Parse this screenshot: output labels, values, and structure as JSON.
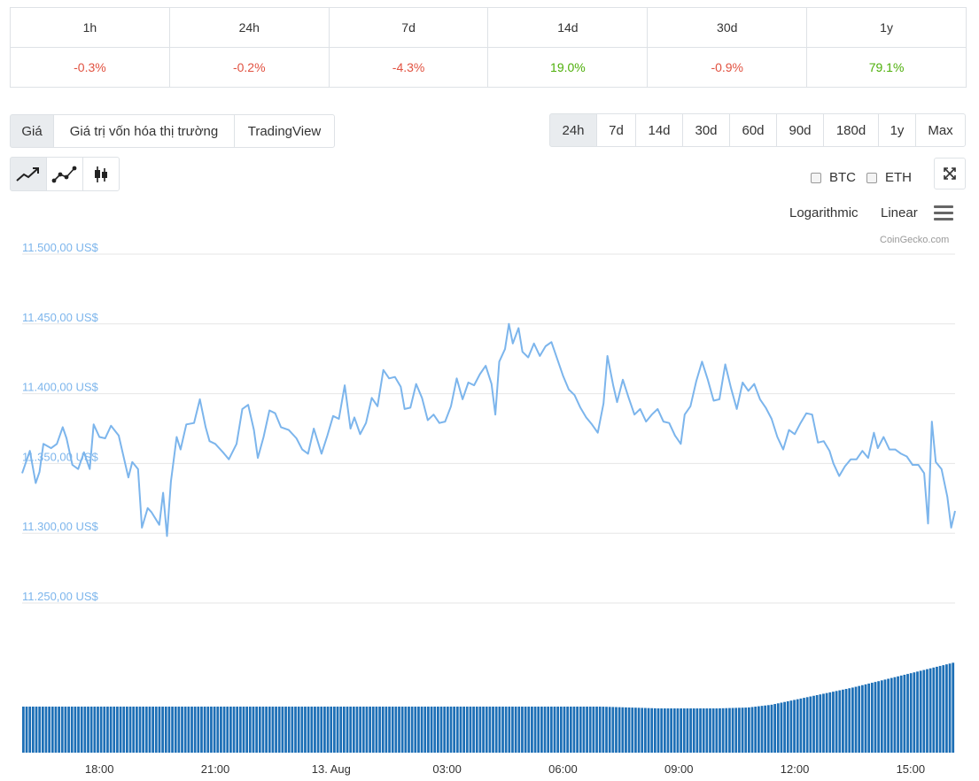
{
  "change_table": {
    "periods": [
      "1h",
      "24h",
      "7d",
      "14d",
      "30d",
      "1y"
    ],
    "values": [
      {
        "text": "-0.3%",
        "sign": "neg"
      },
      {
        "text": "-0.2%",
        "sign": "neg"
      },
      {
        "text": "-4.3%",
        "sign": "neg"
      },
      {
        "text": "19.0%",
        "sign": "pos"
      },
      {
        "text": "-0.9%",
        "sign": "neg"
      },
      {
        "text": "79.1%",
        "sign": "pos"
      }
    ]
  },
  "view_tabs": [
    {
      "label": "Giá",
      "active": true
    },
    {
      "label": "Giá trị vốn hóa thị trường",
      "active": false
    },
    {
      "label": "TradingView",
      "active": false
    }
  ],
  "range_tabs": [
    {
      "label": "24h",
      "active": true
    },
    {
      "label": "7d",
      "active": false
    },
    {
      "label": "14d",
      "active": false
    },
    {
      "label": "30d",
      "active": false
    },
    {
      "label": "60d",
      "active": false
    },
    {
      "label": "90d",
      "active": false
    },
    {
      "label": "180d",
      "active": false
    },
    {
      "label": "1y",
      "active": false
    },
    {
      "label": "Max",
      "active": false
    }
  ],
  "chart_type_icons": [
    "line-chart-icon",
    "point-line-chart-icon",
    "candlestick-icon"
  ],
  "compare": {
    "btc": "BTC",
    "eth": "ETH"
  },
  "scale": {
    "logarithmic": "Logarithmic",
    "linear": "Linear"
  },
  "credit": "CoinGecko.com",
  "colors": {
    "line": "#7cb5ec",
    "volume": "#1d6fb6",
    "positive": "#4eaf0a",
    "negative": "#e15241"
  },
  "chart_data": {
    "type": "line",
    "y_axis_labels": [
      "11.500,00 US$",
      "11.450,00 US$",
      "11.400,00 US$",
      "11.350,00 US$",
      "11.300,00 US$",
      "11.250,00 US$"
    ],
    "y_ticks": [
      11500,
      11450,
      11400,
      11350,
      11300,
      11250
    ],
    "ylim": [
      11250,
      11500
    ],
    "x_axis_labels": [
      "18:00",
      "21:00",
      "13. Aug",
      "03:00",
      "06:00",
      "09:00",
      "12:00",
      "15:00"
    ],
    "x_ticks_hours": [
      2,
      5,
      8,
      11,
      14,
      17,
      20,
      23
    ],
    "x_range_hours": [
      0,
      24.15
    ],
    "grid": true,
    "price_series": [
      [
        0.0,
        11343
      ],
      [
        0.2,
        11359
      ],
      [
        0.35,
        11336
      ],
      [
        0.45,
        11344
      ],
      [
        0.55,
        11364
      ],
      [
        0.75,
        11361
      ],
      [
        0.9,
        11364
      ],
      [
        1.05,
        11376
      ],
      [
        1.15,
        11368
      ],
      [
        1.3,
        11349
      ],
      [
        1.45,
        11346
      ],
      [
        1.6,
        11358
      ],
      [
        1.75,
        11346
      ],
      [
        1.85,
        11378
      ],
      [
        2.0,
        11369
      ],
      [
        2.15,
        11368
      ],
      [
        2.3,
        11377
      ],
      [
        2.5,
        11370
      ],
      [
        2.75,
        11340
      ],
      [
        2.85,
        11351
      ],
      [
        3.0,
        11346
      ],
      [
        3.1,
        11304
      ],
      [
        3.25,
        11318
      ],
      [
        3.35,
        11315
      ],
      [
        3.55,
        11306
      ],
      [
        3.65,
        11329
      ],
      [
        3.75,
        11298
      ],
      [
        3.85,
        11337
      ],
      [
        4.0,
        11369
      ],
      [
        4.1,
        11360
      ],
      [
        4.25,
        11378
      ],
      [
        4.45,
        11379
      ],
      [
        4.6,
        11396
      ],
      [
        4.75,
        11376
      ],
      [
        4.85,
        11366
      ],
      [
        5.0,
        11364
      ],
      [
        5.2,
        11358
      ],
      [
        5.35,
        11353
      ],
      [
        5.55,
        11364
      ],
      [
        5.7,
        11389
      ],
      [
        5.85,
        11392
      ],
      [
        6.0,
        11374
      ],
      [
        6.1,
        11354
      ],
      [
        6.25,
        11369
      ],
      [
        6.4,
        11388
      ],
      [
        6.55,
        11386
      ],
      [
        6.7,
        11376
      ],
      [
        6.9,
        11374
      ],
      [
        7.1,
        11368
      ],
      [
        7.25,
        11360
      ],
      [
        7.4,
        11357
      ],
      [
        7.55,
        11375
      ],
      [
        7.75,
        11357
      ],
      [
        7.9,
        11370
      ],
      [
        8.05,
        11384
      ],
      [
        8.2,
        11382
      ],
      [
        8.35,
        11406
      ],
      [
        8.5,
        11375
      ],
      [
        8.6,
        11383
      ],
      [
        8.75,
        11371
      ],
      [
        8.9,
        11379
      ],
      [
        9.05,
        11397
      ],
      [
        9.2,
        11391
      ],
      [
        9.35,
        11417
      ],
      [
        9.5,
        11411
      ],
      [
        9.65,
        11412
      ],
      [
        9.8,
        11405
      ],
      [
        9.9,
        11389
      ],
      [
        10.05,
        11390
      ],
      [
        10.2,
        11407
      ],
      [
        10.35,
        11397
      ],
      [
        10.5,
        11381
      ],
      [
        10.65,
        11385
      ],
      [
        10.8,
        11379
      ],
      [
        10.95,
        11380
      ],
      [
        11.1,
        11391
      ],
      [
        11.25,
        11411
      ],
      [
        11.4,
        11396
      ],
      [
        11.55,
        11408
      ],
      [
        11.7,
        11406
      ],
      [
        11.85,
        11414
      ],
      [
        12.0,
        11420
      ],
      [
        12.15,
        11407
      ],
      [
        12.25,
        11385
      ],
      [
        12.35,
        11423
      ],
      [
        12.5,
        11432
      ],
      [
        12.6,
        11450
      ],
      [
        12.7,
        11436
      ],
      [
        12.85,
        11447
      ],
      [
        12.95,
        11430
      ],
      [
        13.1,
        11426
      ],
      [
        13.25,
        11436
      ],
      [
        13.4,
        11427
      ],
      [
        13.55,
        11434
      ],
      [
        13.7,
        11437
      ],
      [
        13.85,
        11425
      ],
      [
        14.0,
        11413
      ],
      [
        14.15,
        11403
      ],
      [
        14.3,
        11399
      ],
      [
        14.45,
        11390
      ],
      [
        14.6,
        11383
      ],
      [
        14.75,
        11378
      ],
      [
        14.9,
        11372
      ],
      [
        15.05,
        11393
      ],
      [
        15.15,
        11427
      ],
      [
        15.3,
        11406
      ],
      [
        15.4,
        11394
      ],
      [
        15.55,
        11410
      ],
      [
        15.7,
        11397
      ],
      [
        15.85,
        11385
      ],
      [
        16.0,
        11389
      ],
      [
        16.15,
        11380
      ],
      [
        16.3,
        11385
      ],
      [
        16.45,
        11389
      ],
      [
        16.6,
        11380
      ],
      [
        16.75,
        11379
      ],
      [
        16.9,
        11370
      ],
      [
        17.05,
        11364
      ],
      [
        17.15,
        11385
      ],
      [
        17.3,
        11391
      ],
      [
        17.45,
        11409
      ],
      [
        17.6,
        11423
      ],
      [
        17.75,
        11410
      ],
      [
        17.9,
        11395
      ],
      [
        18.05,
        11396
      ],
      [
        18.2,
        11421
      ],
      [
        18.35,
        11404
      ],
      [
        18.5,
        11389
      ],
      [
        18.65,
        11408
      ],
      [
        18.8,
        11402
      ],
      [
        18.95,
        11407
      ],
      [
        19.1,
        11396
      ],
      [
        19.25,
        11390
      ],
      [
        19.4,
        11382
      ],
      [
        19.55,
        11369
      ],
      [
        19.7,
        11360
      ],
      [
        19.85,
        11374
      ],
      [
        20.0,
        11371
      ],
      [
        20.15,
        11379
      ],
      [
        20.3,
        11386
      ],
      [
        20.45,
        11385
      ],
      [
        20.6,
        11365
      ],
      [
        20.75,
        11366
      ],
      [
        20.9,
        11359
      ],
      [
        21.0,
        11350
      ],
      [
        21.15,
        11341
      ],
      [
        21.3,
        11348
      ],
      [
        21.45,
        11353
      ],
      [
        21.6,
        11353
      ],
      [
        21.75,
        11359
      ],
      [
        21.9,
        11354
      ],
      [
        22.05,
        11372
      ],
      [
        22.15,
        11361
      ],
      [
        22.3,
        11369
      ],
      [
        22.45,
        11360
      ],
      [
        22.6,
        11360
      ],
      [
        22.75,
        11357
      ],
      [
        22.9,
        11355
      ],
      [
        23.05,
        11349
      ],
      [
        23.2,
        11349
      ],
      [
        23.35,
        11343
      ],
      [
        23.45,
        11307
      ],
      [
        23.55,
        11380
      ],
      [
        23.65,
        11351
      ],
      [
        23.8,
        11346
      ],
      [
        23.95,
        11326
      ],
      [
        24.05,
        11304
      ],
      [
        24.15,
        11316
      ]
    ],
    "volume_series": {
      "start_hour": 0,
      "end_hour": 24.15,
      "bar_count": 288,
      "relative_levels": [
        [
          0,
          0.51
        ],
        [
          15,
          0.51
        ],
        [
          16.5,
          0.49
        ],
        [
          18,
          0.49
        ],
        [
          18.8,
          0.5
        ],
        [
          19.4,
          0.53
        ],
        [
          21.5,
          0.72
        ],
        [
          24.15,
          1.0
        ]
      ]
    }
  }
}
